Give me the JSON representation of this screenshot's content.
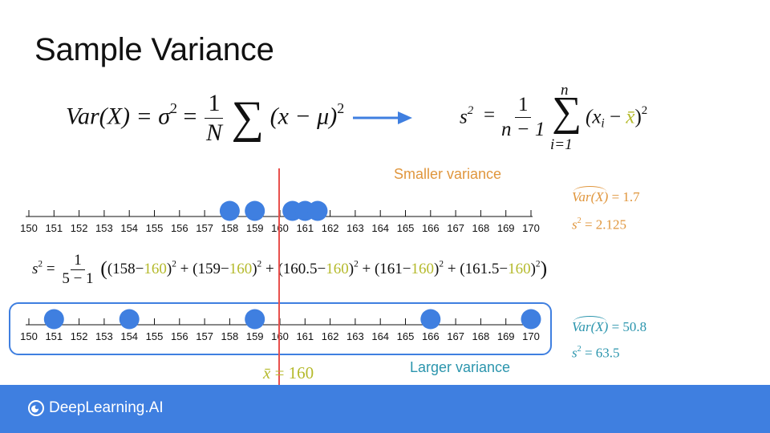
{
  "title": "Sample Variance",
  "formula_population": {
    "lhs": "Var(X) = σ",
    "exp": "2",
    "equals": "=",
    "frac_num": "1",
    "frac_den": "N",
    "sum": "∑",
    "term": "(x − μ)",
    "term_exp": "2"
  },
  "formula_sample": {
    "lhs": "s",
    "lhs_exp": "2",
    "equals": "=",
    "frac_num": "1",
    "frac_den": "n − 1",
    "sum_top": "n",
    "sum": "∑",
    "sum_bottom": "i=1",
    "term_open": "(x",
    "term_sub": "i",
    "term_minus": " − ",
    "term_mean": "x̄",
    "term_close": ")",
    "term_exp": "2"
  },
  "top_line": {
    "label": "Smaller variance",
    "ticks": [
      "150",
      "151",
      "152",
      "153",
      "154",
      "155",
      "156",
      "157",
      "158",
      "159",
      "160",
      "161",
      "162",
      "163",
      "164",
      "165",
      "166",
      "167",
      "168",
      "169",
      "170"
    ],
    "points": [
      158,
      159,
      160.5,
      161,
      161.5
    ],
    "var_hat_label": "Var(X)",
    "var_hat_value": " = 1.7",
    "s2_label": "s",
    "s2_exp": "2",
    "s2_value": " = 2.125",
    "color": "#e0963d"
  },
  "mid_formula": {
    "lhs": "s",
    "lhs_exp": "2",
    "equals": "=",
    "frac_num": "1",
    "frac_den": "5 − 1",
    "open": "(",
    "terms": [
      {
        "open": "(158−",
        "mean": "160",
        "close": ")",
        "exp": "2",
        "plus": " + "
      },
      {
        "open": "(159−",
        "mean": "160",
        "close": ")",
        "exp": "2",
        "plus": " + "
      },
      {
        "open": "(160.5−",
        "mean": "160",
        "close": ")",
        "exp": "2",
        "plus": " + "
      },
      {
        "open": "(161−",
        "mean": "160",
        "close": ")",
        "exp": "2",
        "plus": " + "
      },
      {
        "open": "(161.5−",
        "mean": "160",
        "close": ")",
        "exp": "2",
        "plus": ""
      }
    ],
    "close": ")"
  },
  "bottom_line": {
    "label": "Larger variance",
    "ticks": [
      "150",
      "151",
      "152",
      "153",
      "154",
      "155",
      "156",
      "157",
      "158",
      "159",
      "160",
      "161",
      "162",
      "163",
      "164",
      "165",
      "166",
      "167",
      "168",
      "169",
      "170"
    ],
    "points": [
      151,
      154,
      159,
      166,
      170
    ],
    "var_hat_label": "Var(X)",
    "var_hat_value": " = 50.8",
    "s2_label": "s",
    "s2_exp": "2",
    "s2_value": " = 63.5",
    "color": "#2b95ad"
  },
  "mean_line": {
    "value": 160,
    "label_symbol": "x̄",
    "label_value": " = 160",
    "color": "#e8504d"
  },
  "colors": {
    "point": "#3f7fe0",
    "arrow": "#3f7fe0",
    "frame": "#3f7fe0",
    "footer": "#3f7fe0",
    "mean_highlight": "#b5ba2c"
  },
  "footer": {
    "brand": "DeepLearning.AI",
    "logo_icon": "deeplearning-logo-icon"
  }
}
